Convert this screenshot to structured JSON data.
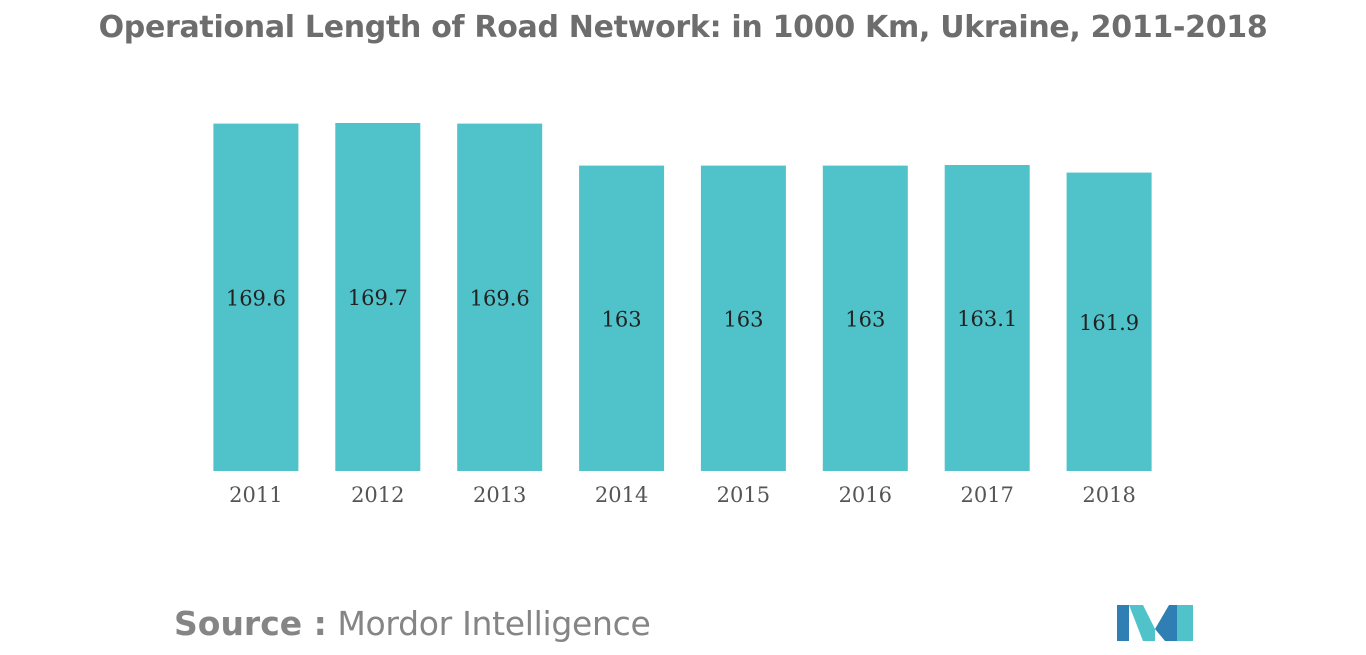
{
  "colors": {
    "bar": "#50c2c9",
    "title": "#6d6d6d",
    "label": "#222222",
    "tick": "#555555",
    "footer": "#858585",
    "logo_dark": "#2f7fb5",
    "logo_light": "#50c2c9"
  },
  "footer": {
    "source_label": "Source :",
    "source_name": "Mordor Intelligence"
  },
  "logo": {
    "icon": "mordor-intelligence-logo-icon"
  },
  "chart_data": {
    "type": "bar",
    "title": "Operational Length of Road Network: in 1000 Km, Ukraine, 2011-2018",
    "xlabel": "",
    "ylabel": "",
    "categories": [
      "2011",
      "2012",
      "2013",
      "2014",
      "2015",
      "2016",
      "2017",
      "2018"
    ],
    "values": [
      169.6,
      169.7,
      169.6,
      163,
      163,
      163,
      163.1,
      161.9
    ],
    "data_labels": [
      "169.6",
      "169.7",
      "169.6",
      "163",
      "163",
      "163",
      "163.1",
      "161.9"
    ],
    "ylim": [
      0,
      169.7
    ],
    "grid": false,
    "legend": "none"
  }
}
